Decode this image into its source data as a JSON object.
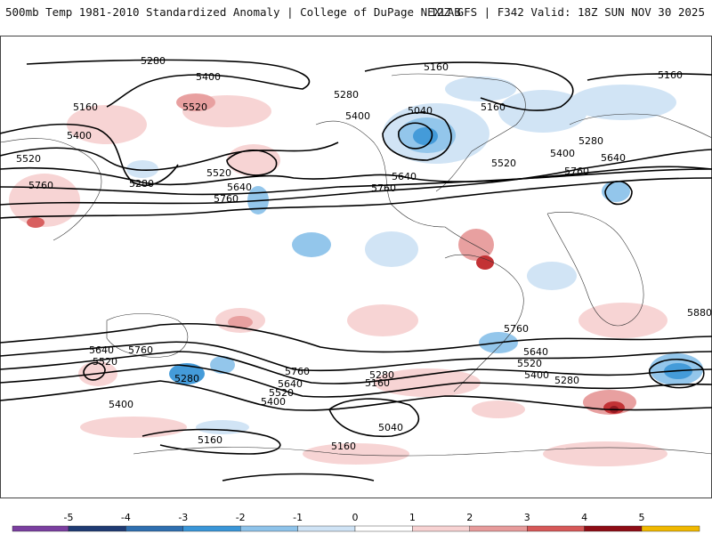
{
  "header": {
    "title": "500mb Temp 1981-2010 Standardized Anomaly | College of DuPage NEXLAB",
    "run_info": "12Z GFS | F342 Valid: 18Z SUN NOV 30 2025"
  },
  "contour_labels": [
    {
      "id": "l1",
      "text": "5280"
    },
    {
      "id": "l2",
      "text": "5400"
    },
    {
      "id": "l3",
      "text": "5160"
    },
    {
      "id": "l4",
      "text": "5520"
    },
    {
      "id": "l5",
      "text": "5400"
    },
    {
      "id": "l6",
      "text": "5520"
    },
    {
      "id": "l7",
      "text": "5280"
    },
    {
      "id": "l8",
      "text": "5760"
    },
    {
      "id": "l9",
      "text": "5520"
    },
    {
      "id": "l10",
      "text": "5640"
    },
    {
      "id": "l11",
      "text": "5760"
    },
    {
      "id": "l12",
      "text": "5160"
    },
    {
      "id": "l13",
      "text": "5280"
    },
    {
      "id": "l14",
      "text": "5400"
    },
    {
      "id": "l15",
      "text": "5040"
    },
    {
      "id": "l16",
      "text": "5160"
    },
    {
      "id": "l17",
      "text": "5640"
    },
    {
      "id": "l18",
      "text": "5760"
    },
    {
      "id": "l19",
      "text": "5520"
    },
    {
      "id": "l20",
      "text": "5160"
    },
    {
      "id": "l21",
      "text": "5280"
    },
    {
      "id": "l22",
      "text": "5400"
    },
    {
      "id": "l23",
      "text": "5640"
    },
    {
      "id": "l24",
      "text": "5760"
    },
    {
      "id": "l25",
      "text": "5880"
    },
    {
      "id": "l26",
      "text": "5640"
    },
    {
      "id": "l27",
      "text": "5520"
    },
    {
      "id": "l28",
      "text": "5760"
    },
    {
      "id": "l29",
      "text": "5400"
    },
    {
      "id": "l30",
      "text": "5280"
    },
    {
      "id": "l31",
      "text": "5760"
    },
    {
      "id": "l32",
      "text": "5640"
    },
    {
      "id": "l33",
      "text": "5520"
    },
    {
      "id": "l34",
      "text": "5400"
    },
    {
      "id": "l35",
      "text": "5280"
    },
    {
      "id": "l36",
      "text": "5160"
    },
    {
      "id": "l37",
      "text": "5040"
    },
    {
      "id": "l38",
      "text": "5160"
    },
    {
      "id": "l39",
      "text": "5160"
    },
    {
      "id": "l40",
      "text": "5760"
    },
    {
      "id": "l41",
      "text": "5640"
    },
    {
      "id": "l42",
      "text": "5520"
    },
    {
      "id": "l43",
      "text": "5400"
    },
    {
      "id": "l44",
      "text": "5280"
    }
  ],
  "colorbar": {
    "ticks": [
      "-5",
      "-4",
      "-3",
      "-2",
      "-1",
      "0",
      "1",
      "2",
      "3",
      "4",
      "5"
    ],
    "colors": [
      "#7b3fa0",
      "#1f3b73",
      "#2f6fb0",
      "#3a96d8",
      "#8ec3ea",
      "#cfe3f5",
      "#ffffff",
      "#ffffff",
      "#f7d2d2",
      "#e79b9b",
      "#d65858",
      "#c0282b",
      "#8e0d16",
      "#f0b800"
    ]
  }
}
